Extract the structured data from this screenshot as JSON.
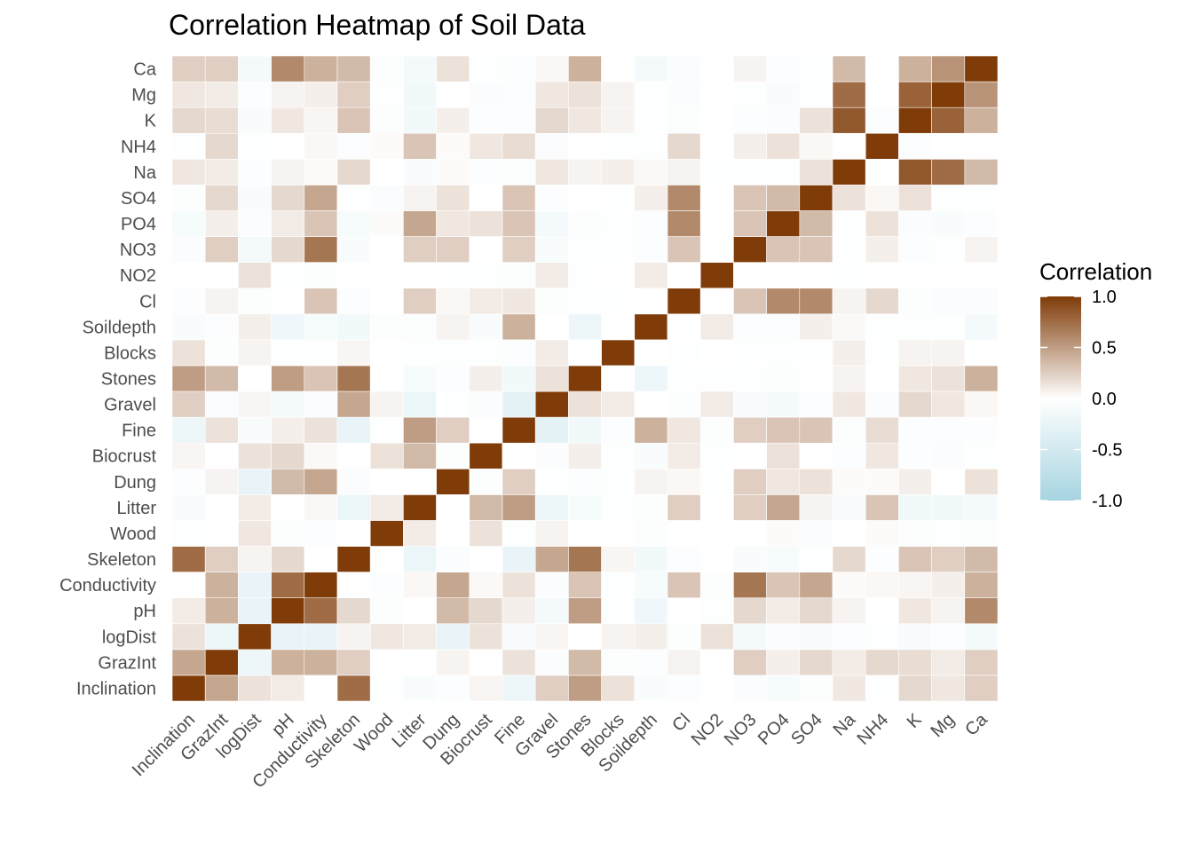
{
  "chart_data": {
    "type": "heatmap",
    "title": "Correlation Heatmap of Soil Data",
    "variables": [
      "Inclination",
      "GrazInt",
      "logDist",
      "pH",
      "Conductivity",
      "Skeleton",
      "Wood",
      "Litter",
      "Dung",
      "Biocrust",
      "Fine",
      "Gravel",
      "Stones",
      "Blocks",
      "Soildepth",
      "Cl",
      "NO2",
      "NO3",
      "PO4",
      "SO4",
      "Na",
      "NH4",
      "K",
      "Mg",
      "Ca"
    ],
    "matrix": [
      [
        1.0,
        0.45,
        0.15,
        0.1,
        0.0,
        0.75,
        -0.02,
        -0.08,
        -0.05,
        0.05,
        -0.2,
        0.25,
        0.5,
        0.15,
        -0.08,
        -0.05,
        0.0,
        -0.06,
        -0.1,
        -0.03,
        0.12,
        -0.02,
        0.2,
        0.12,
        0.25
      ],
      [
        0.45,
        1.0,
        -0.2,
        0.4,
        0.4,
        0.25,
        0.0,
        0.0,
        0.06,
        0.0,
        0.15,
        -0.06,
        0.35,
        -0.03,
        -0.05,
        0.06,
        0.0,
        0.25,
        0.08,
        0.2,
        0.1,
        0.2,
        0.18,
        0.1,
        0.25
      ],
      [
        0.15,
        -0.2,
        1.0,
        -0.25,
        -0.25,
        0.06,
        0.12,
        0.1,
        -0.25,
        0.15,
        -0.08,
        0.05,
        0.0,
        0.06,
        0.08,
        -0.03,
        0.15,
        -0.12,
        -0.06,
        -0.08,
        -0.04,
        -0.02,
        -0.08,
        -0.05,
        -0.12
      ],
      [
        0.1,
        0.4,
        -0.25,
        1.0,
        0.75,
        0.2,
        -0.03,
        0.0,
        0.35,
        0.2,
        0.08,
        -0.12,
        0.5,
        -0.02,
        -0.18,
        0.0,
        -0.02,
        0.2,
        0.1,
        0.2,
        0.06,
        0.0,
        0.12,
        0.06,
        0.6
      ],
      [
        0.0,
        0.4,
        -0.25,
        0.75,
        1.0,
        0.0,
        -0.04,
        0.04,
        0.45,
        0.03,
        0.15,
        -0.06,
        0.3,
        -0.02,
        -0.1,
        0.3,
        -0.03,
        0.7,
        0.3,
        0.45,
        0.02,
        0.04,
        0.05,
        0.08,
        0.4
      ],
      [
        0.75,
        0.25,
        0.06,
        0.2,
        0.0,
        1.0,
        0.0,
        -0.22,
        -0.06,
        0.0,
        -0.25,
        0.45,
        0.7,
        0.05,
        -0.15,
        -0.04,
        0.0,
        -0.08,
        -0.1,
        -0.02,
        0.2,
        -0.05,
        0.3,
        0.25,
        0.35
      ],
      [
        -0.02,
        0.0,
        0.12,
        -0.03,
        -0.04,
        0.0,
        1.0,
        0.1,
        0.0,
        0.15,
        -0.02,
        0.06,
        0.0,
        0.0,
        -0.03,
        0.0,
        0.0,
        0.0,
        0.02,
        -0.06,
        0.0,
        0.02,
        -0.03,
        -0.02,
        -0.03
      ],
      [
        -0.08,
        0.0,
        0.1,
        0.0,
        0.04,
        -0.22,
        0.1,
        1.0,
        0.0,
        0.35,
        0.5,
        -0.22,
        -0.1,
        -0.02,
        -0.03,
        0.25,
        0.0,
        0.25,
        0.45,
        0.06,
        -0.08,
        0.3,
        -0.15,
        -0.15,
        -0.12
      ],
      [
        -0.05,
        0.06,
        -0.25,
        0.35,
        0.45,
        -0.06,
        0.0,
        0.0,
        1.0,
        -0.03,
        0.25,
        -0.02,
        -0.04,
        -0.02,
        0.06,
        0.04,
        -0.02,
        0.25,
        0.12,
        0.15,
        0.02,
        0.02,
        0.08,
        0.0,
        0.15
      ],
      [
        0.05,
        0.0,
        0.15,
        0.2,
        0.03,
        0.0,
        0.15,
        0.35,
        -0.03,
        1.0,
        0.0,
        -0.06,
        0.08,
        -0.02,
        -0.08,
        0.1,
        -0.02,
        0.0,
        0.15,
        0.0,
        -0.04,
        0.12,
        -0.04,
        -0.06,
        -0.02
      ],
      [
        -0.2,
        0.15,
        -0.08,
        0.08,
        0.15,
        -0.25,
        -0.02,
        0.5,
        0.25,
        0.0,
        1.0,
        -0.3,
        -0.15,
        -0.05,
        0.4,
        0.12,
        -0.03,
        0.25,
        0.3,
        0.3,
        -0.03,
        0.18,
        -0.05,
        -0.04,
        -0.04
      ],
      [
        0.25,
        -0.06,
        0.05,
        -0.12,
        -0.06,
        0.45,
        0.06,
        -0.22,
        -0.02,
        -0.06,
        -0.3,
        1.0,
        0.15,
        0.1,
        0.0,
        -0.03,
        0.1,
        -0.08,
        -0.12,
        -0.04,
        0.12,
        -0.06,
        0.2,
        0.12,
        0.04
      ],
      [
        0.5,
        0.35,
        0.0,
        0.5,
        0.3,
        0.7,
        0.0,
        -0.1,
        -0.04,
        0.08,
        -0.15,
        0.15,
        1.0,
        0.0,
        -0.2,
        -0.02,
        -0.02,
        -0.02,
        -0.03,
        0.0,
        0.06,
        0.0,
        0.12,
        0.15,
        0.4
      ],
      [
        0.15,
        -0.03,
        0.06,
        -0.02,
        -0.02,
        0.05,
        0.0,
        -0.02,
        -0.02,
        -0.02,
        -0.05,
        0.1,
        0.0,
        1.0,
        0.0,
        -0.02,
        0.0,
        -0.02,
        -0.02,
        -0.02,
        0.08,
        -0.02,
        0.06,
        0.06,
        0.0
      ],
      [
        -0.08,
        -0.05,
        0.08,
        -0.18,
        -0.1,
        -0.15,
        -0.03,
        -0.03,
        0.06,
        -0.08,
        0.4,
        0.0,
        -0.2,
        0.0,
        1.0,
        0.0,
        0.1,
        -0.04,
        -0.05,
        0.08,
        0.03,
        -0.02,
        -0.02,
        -0.02,
        -0.12
      ],
      [
        -0.05,
        0.06,
        -0.03,
        0.0,
        0.3,
        -0.04,
        0.0,
        0.25,
        0.04,
        0.1,
        0.12,
        -0.03,
        -0.02,
        -0.02,
        0.0,
        1.0,
        0.0,
        0.3,
        0.6,
        0.6,
        0.06,
        0.2,
        -0.03,
        -0.06,
        -0.06
      ],
      [
        0.0,
        0.0,
        0.15,
        -0.02,
        -0.03,
        0.0,
        0.0,
        0.0,
        -0.02,
        -0.02,
        -0.03,
        0.1,
        -0.02,
        0.0,
        0.1,
        0.0,
        1.0,
        0.0,
        0.0,
        0.0,
        -0.02,
        0.0,
        0.0,
        0.0,
        0.0
      ],
      [
        -0.06,
        0.25,
        -0.12,
        0.2,
        0.7,
        -0.08,
        0.0,
        0.25,
        0.25,
        0.0,
        0.25,
        -0.08,
        -0.02,
        -0.02,
        -0.04,
        0.3,
        0.0,
        1.0,
        0.3,
        0.3,
        -0.02,
        0.08,
        -0.04,
        -0.02,
        0.06
      ],
      [
        -0.1,
        0.08,
        -0.06,
        0.1,
        0.3,
        -0.1,
        0.02,
        0.45,
        0.12,
        0.15,
        0.3,
        -0.12,
        -0.03,
        -0.02,
        -0.05,
        0.6,
        0.0,
        0.3,
        1.0,
        0.35,
        -0.02,
        0.15,
        -0.06,
        -0.08,
        -0.04
      ],
      [
        -0.03,
        0.2,
        -0.08,
        0.2,
        0.45,
        -0.02,
        -0.06,
        0.06,
        0.15,
        0.0,
        0.3,
        -0.04,
        0.0,
        -0.02,
        0.08,
        0.6,
        0.0,
        0.3,
        0.35,
        1.0,
        0.15,
        0.04,
        0.15,
        -0.02,
        -0.02
      ],
      [
        0.12,
        0.1,
        -0.04,
        0.06,
        0.02,
        0.2,
        0.0,
        -0.08,
        0.02,
        -0.04,
        -0.03,
        0.12,
        0.06,
        0.08,
        0.03,
        0.06,
        -0.02,
        -0.02,
        -0.02,
        0.15,
        1.0,
        0.0,
        0.85,
        0.75,
        0.35
      ],
      [
        -0.02,
        0.2,
        -0.02,
        0.0,
        0.04,
        -0.05,
        0.02,
        0.3,
        0.02,
        0.12,
        0.18,
        -0.06,
        0.0,
        -0.02,
        -0.02,
        0.2,
        0.0,
        0.08,
        0.15,
        0.04,
        0.0,
        1.0,
        -0.04,
        0.0,
        0.0
      ],
      [
        0.2,
        0.18,
        -0.08,
        0.12,
        0.05,
        0.3,
        -0.03,
        -0.15,
        0.08,
        -0.04,
        -0.05,
        0.2,
        0.12,
        0.06,
        -0.02,
        -0.03,
        0.0,
        -0.04,
        -0.06,
        0.15,
        0.85,
        -0.04,
        1.0,
        0.8,
        0.4
      ],
      [
        0.12,
        0.1,
        -0.05,
        0.06,
        0.08,
        0.25,
        -0.02,
        -0.15,
        0.0,
        -0.06,
        -0.04,
        0.12,
        0.15,
        0.06,
        -0.02,
        -0.06,
        0.0,
        -0.02,
        -0.08,
        -0.02,
        0.75,
        0.0,
        0.8,
        1.0,
        0.55
      ],
      [
        0.25,
        0.25,
        -0.12,
        0.6,
        0.4,
        0.35,
        -0.03,
        -0.12,
        0.15,
        -0.02,
        -0.04,
        0.04,
        0.4,
        0.0,
        -0.12,
        -0.06,
        0.0,
        0.06,
        -0.04,
        -0.02,
        0.35,
        0.0,
        0.4,
        0.55,
        1.0
      ]
    ],
    "legend": {
      "title": "Correlation",
      "ticks": [
        "1.0",
        "0.5",
        "0.0",
        "-0.5",
        "-1.0"
      ],
      "placement": "right"
    },
    "colors": {
      "low": "#a6d4e1",
      "mid": "#ffffff",
      "high": "#7f3b08"
    },
    "range": [
      -1,
      1
    ],
    "grid": true
  }
}
